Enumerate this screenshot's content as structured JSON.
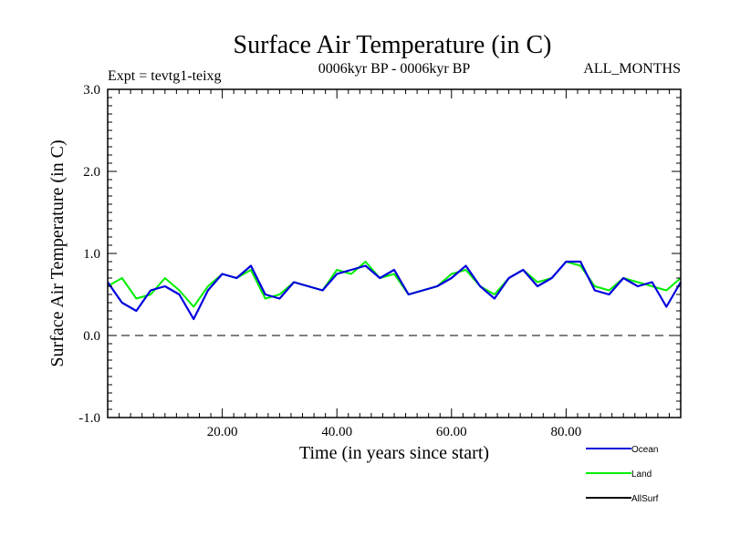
{
  "chart_data": {
    "type": "line",
    "title": "Surface Air Temperature (in C)",
    "subtitle_left": "Expt = tevtg1-teixg",
    "subtitle_center": "0006kyr BP - 0006kyr BP",
    "subtitle_right": "ALL_MONTHS",
    "xlabel": "Time (in years since start)",
    "ylabel": "Surface Air Temperature (in C)",
    "xlim": [
      0,
      100
    ],
    "ylim": [
      -1.0,
      3.0
    ],
    "x_ticks": [
      20,
      40,
      60,
      80
    ],
    "x_tick_labels": [
      "20.00",
      "40.00",
      "60.00",
      "80.00"
    ],
    "y_ticks": [
      -1.0,
      0.0,
      1.0,
      2.0,
      3.0
    ],
    "y_tick_labels": [
      "-1.0",
      "0.0",
      "1.0",
      "2.0",
      "3.0"
    ],
    "reference_line": {
      "y": 0.0,
      "style": "dashed"
    },
    "series": [
      {
        "name": "Land",
        "color": "#00ee00",
        "x": [
          0,
          2.5,
          5,
          7.5,
          10,
          12.5,
          15,
          17.5,
          20,
          22.5,
          25,
          27.5,
          30,
          32.5,
          35,
          37.5,
          40,
          42.5,
          45,
          47.5,
          50,
          52.5,
          55,
          57.5,
          60,
          62.5,
          65,
          67.5,
          70,
          72.5,
          75,
          77.5,
          80,
          82.5,
          85,
          87.5,
          90,
          92.5,
          95,
          97.5,
          100
        ],
        "values": [
          0.6,
          0.7,
          0.45,
          0.5,
          0.7,
          0.55,
          0.35,
          0.6,
          0.75,
          0.7,
          0.8,
          0.45,
          0.5,
          0.65,
          0.6,
          0.55,
          0.8,
          0.75,
          0.9,
          0.7,
          0.75,
          0.5,
          0.55,
          0.6,
          0.75,
          0.8,
          0.6,
          0.5,
          0.7,
          0.8,
          0.65,
          0.7,
          0.9,
          0.85,
          0.6,
          0.55,
          0.7,
          0.65,
          0.6,
          0.55,
          0.7
        ]
      },
      {
        "name": "Ocean",
        "color": "#0000dd",
        "x": [
          0,
          2.5,
          5,
          7.5,
          10,
          12.5,
          15,
          17.5,
          20,
          22.5,
          25,
          27.5,
          30,
          32.5,
          35,
          37.5,
          40,
          42.5,
          45,
          47.5,
          50,
          52.5,
          55,
          57.5,
          60,
          62.5,
          65,
          67.5,
          70,
          72.5,
          75,
          77.5,
          80,
          82.5,
          85,
          87.5,
          90,
          92.5,
          95,
          97.5,
          100
        ],
        "values": [
          0.65,
          0.4,
          0.3,
          0.55,
          0.6,
          0.5,
          0.2,
          0.55,
          0.75,
          0.7,
          0.85,
          0.5,
          0.45,
          0.65,
          0.6,
          0.55,
          0.75,
          0.8,
          0.85,
          0.7,
          0.8,
          0.5,
          0.55,
          0.6,
          0.7,
          0.85,
          0.6,
          0.45,
          0.7,
          0.8,
          0.6,
          0.7,
          0.9,
          0.9,
          0.55,
          0.5,
          0.7,
          0.6,
          0.65,
          0.35,
          0.65
        ]
      },
      {
        "name": "AllSurf",
        "color": "#000000",
        "x": [],
        "values": []
      }
    ],
    "legend": {
      "placement": "bottom-right",
      "entries": [
        {
          "label": "Ocean",
          "color": "#0000dd"
        },
        {
          "label": "Land",
          "color": "#00ee00"
        },
        {
          "label": "AllSurf",
          "color": "#000000"
        }
      ]
    }
  }
}
